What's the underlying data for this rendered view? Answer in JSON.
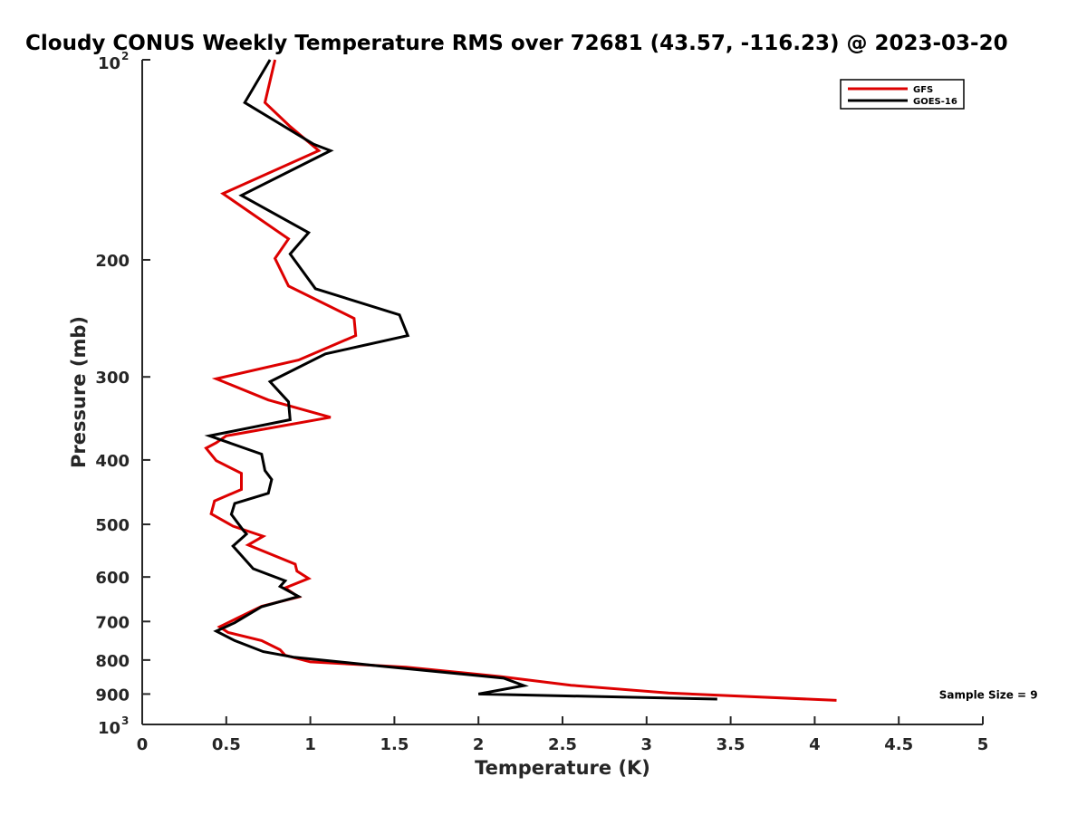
{
  "chart_data": {
    "type": "line",
    "title": "Cloudy CONUS Weekly Temperature RMS over 72681 (43.57, -116.23) @ 2023-03-20",
    "xlabel": "Temperature (K)",
    "ylabel": "Pressure (mb)",
    "xlim": [
      0,
      5
    ],
    "ylim": [
      100,
      1000
    ],
    "yscale": "log",
    "y_reversed": true,
    "x_ticks": [
      "0",
      "0.5",
      "1",
      "1.5",
      "2",
      "2.5",
      "3",
      "3.5",
      "4",
      "4.5",
      "5"
    ],
    "y_ticks": [
      {
        "value": 100,
        "label": "10",
        "sup": "2"
      },
      {
        "value": 200,
        "label": "200"
      },
      {
        "value": 300,
        "label": "300"
      },
      {
        "value": 400,
        "label": "400"
      },
      {
        "value": 500,
        "label": "500"
      },
      {
        "value": 600,
        "label": "600"
      },
      {
        "value": 700,
        "label": "700"
      },
      {
        "value": 800,
        "label": "800"
      },
      {
        "value": 900,
        "label": "900"
      },
      {
        "value": 1000,
        "label": "10",
        "sup": "3"
      }
    ],
    "grid": false,
    "legend_position": "top-right",
    "series": [
      {
        "name": "GFS",
        "color": "#dd0000",
        "points": [
          [
            0.79,
            100
          ],
          [
            0.73,
            116
          ],
          [
            0.88,
            126
          ],
          [
            1.05,
            137
          ],
          [
            0.48,
            159
          ],
          [
            0.87,
            186
          ],
          [
            0.79,
            199
          ],
          [
            0.87,
            219
          ],
          [
            1.26,
            245
          ],
          [
            1.27,
            260
          ],
          [
            0.93,
            283
          ],
          [
            0.44,
            302
          ],
          [
            0.75,
            325
          ],
          [
            1.12,
            345
          ],
          [
            0.5,
            368
          ],
          [
            0.44,
            377
          ],
          [
            0.38,
            384
          ],
          [
            0.44,
            401
          ],
          [
            0.59,
            419
          ],
          [
            0.59,
            443
          ],
          [
            0.43,
            461
          ],
          [
            0.41,
            482
          ],
          [
            0.54,
            503
          ],
          [
            0.72,
            521
          ],
          [
            0.63,
            537
          ],
          [
            0.91,
            574
          ],
          [
            0.92,
            588
          ],
          [
            0.99,
            603
          ],
          [
            0.85,
            623
          ],
          [
            0.93,
            643
          ],
          [
            0.71,
            664
          ],
          [
            0.56,
            693
          ],
          [
            0.46,
            713
          ],
          [
            0.51,
            727
          ],
          [
            0.71,
            748
          ],
          [
            0.82,
            772
          ],
          [
            0.85,
            787
          ],
          [
            1.0,
            805
          ],
          [
            1.57,
            820
          ],
          [
            2.13,
            847
          ],
          [
            2.55,
            873
          ],
          [
            3.13,
            897
          ],
          [
            4.13,
            920
          ]
        ]
      },
      {
        "name": "GOES-16",
        "color": "#000000",
        "points": [
          [
            0.76,
            100
          ],
          [
            0.61,
            116
          ],
          [
            1.02,
            134
          ],
          [
            1.12,
            137
          ],
          [
            0.59,
            160
          ],
          [
            0.99,
            182
          ],
          [
            0.88,
            196
          ],
          [
            1.03,
            221
          ],
          [
            1.53,
            242
          ],
          [
            1.58,
            260
          ],
          [
            1.09,
            277
          ],
          [
            0.76,
            305
          ],
          [
            0.87,
            327
          ],
          [
            0.88,
            348
          ],
          [
            0.4,
            368
          ],
          [
            0.71,
            392
          ],
          [
            0.73,
            415
          ],
          [
            0.77,
            428
          ],
          [
            0.75,
            449
          ],
          [
            0.55,
            465
          ],
          [
            0.53,
            483
          ],
          [
            0.6,
            510
          ],
          [
            0.62,
            517
          ],
          [
            0.54,
            539
          ],
          [
            0.66,
            583
          ],
          [
            0.85,
            608
          ],
          [
            0.82,
            620
          ],
          [
            0.93,
            642
          ],
          [
            0.71,
            665
          ],
          [
            0.55,
            703
          ],
          [
            0.44,
            724
          ],
          [
            0.55,
            748
          ],
          [
            0.72,
            777
          ],
          [
            0.9,
            792
          ],
          [
            1.4,
            816
          ],
          [
            2.15,
            852
          ],
          [
            2.27,
            874
          ],
          [
            2.0,
            900
          ],
          [
            3.42,
            916
          ]
        ]
      }
    ],
    "annotations": [
      {
        "text": "Sample Size = 9",
        "x": 4.74,
        "y": 900
      }
    ]
  }
}
